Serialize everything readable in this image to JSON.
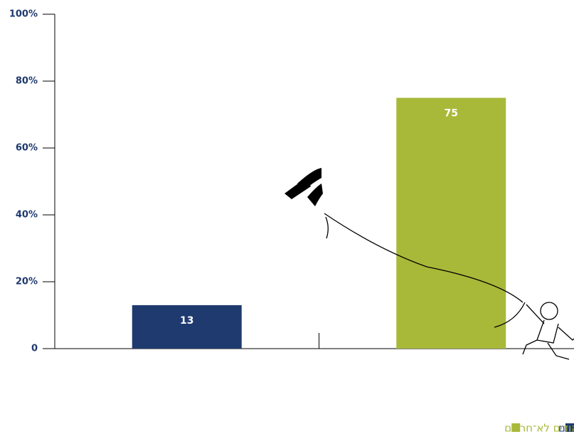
{
  "chart_data": {
    "type": "bar",
    "categories": [
      null,
      null
    ],
    "series": [
      {
        "name": "חרדים",
        "color": "#1f3a6e",
        "values": [
          13,
          null
        ]
      },
      {
        "name": "יהודים לא־חרדים",
        "color": "#a8b93a",
        "values": [
          null,
          75
        ]
      }
    ],
    "ylim": [
      0,
      100
    ],
    "yticks": [
      0,
      {
        "value": 20,
        "label": "20%"
      },
      {
        "value": 40,
        "label": "40%"
      },
      {
        "value": 60,
        "label": "60%"
      },
      {
        "value": 80,
        "label": "80%"
      },
      {
        "value": 100,
        "label": "100%"
      }
    ],
    "grid": false
  }
}
